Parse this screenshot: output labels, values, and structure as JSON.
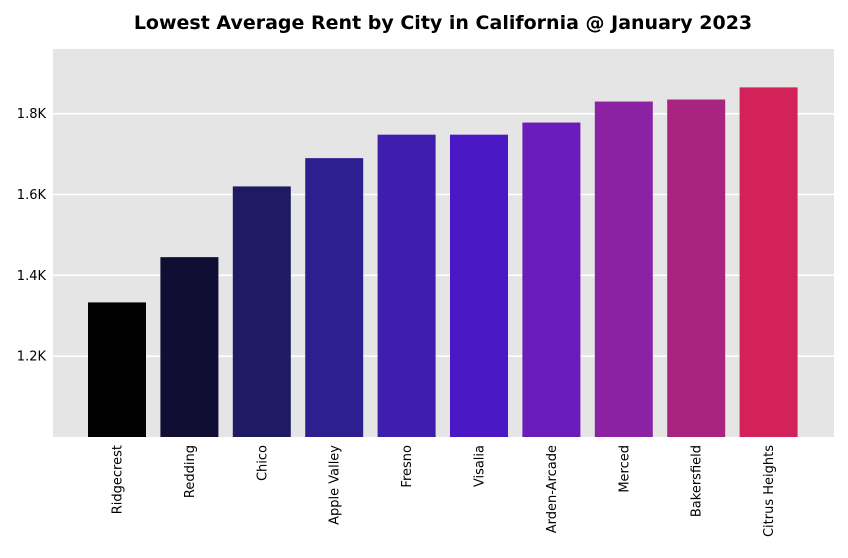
{
  "chart_data": {
    "type": "bar",
    "title": "Lowest Average Rent by City in California @ January 2023",
    "xlabel": "",
    "ylabel": "",
    "categories": [
      "Ridgecrest",
      "Redding",
      "Chico",
      "Apple Valley",
      "Fresno",
      "Visalia",
      "Arden-Arcade",
      "Merced",
      "Bakersfield",
      "Citrus Heights"
    ],
    "values": [
      1333,
      1445,
      1620,
      1690,
      1748,
      1748,
      1778,
      1830,
      1835,
      1865
    ],
    "colors": [
      "#000000",
      "#110e33",
      "#1e1b63",
      "#2d1f90",
      "#3f1dad",
      "#4a18c4",
      "#6a1cbb",
      "#8a22a3",
      "#a8247f",
      "#d3215a"
    ],
    "ylim": [
      1000,
      1960
    ],
    "yticks": [
      1200,
      1400,
      1600,
      1800
    ],
    "ytick_labels": [
      "1.2K",
      "1.4K",
      "1.6K",
      "1.8K"
    ],
    "grid": true,
    "background": "#e5e5e5"
  }
}
